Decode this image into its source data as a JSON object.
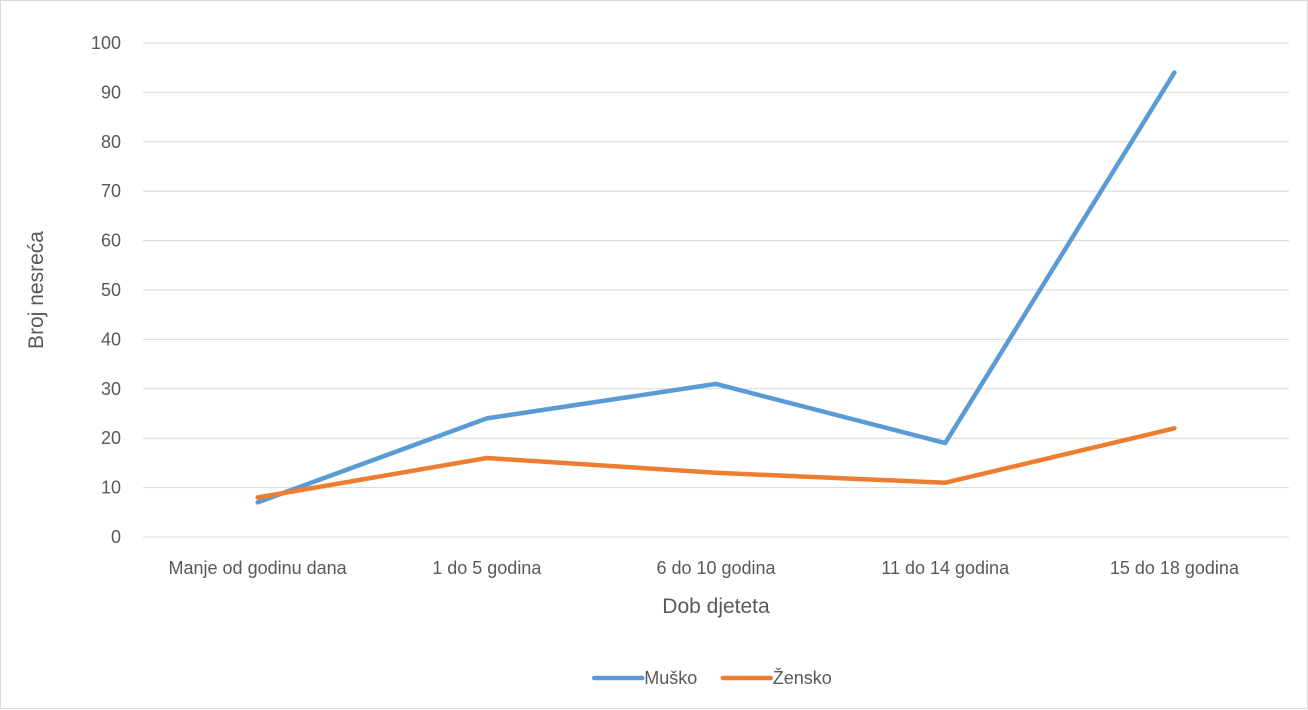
{
  "chart_data": {
    "type": "line",
    "title": "",
    "xlabel": "Dob djeteta",
    "ylabel": "Broj nesreća",
    "categories": [
      "Manje od godinu dana",
      "1 do 5 godina",
      "6 do 10 godina",
      "11 do 14 godina",
      "15 do 18 godina"
    ],
    "series": [
      {
        "name": "Muško",
        "color": "#5b9bd5",
        "values": [
          7,
          24,
          31,
          19,
          94
        ]
      },
      {
        "name": "Žensko",
        "color": "#ed7d31",
        "values": [
          8,
          16,
          13,
          11,
          22
        ]
      }
    ],
    "ylim": [
      0,
      100
    ],
    "yticks": [
      "0",
      "10",
      "20",
      "30",
      "40",
      "50",
      "60",
      "70",
      "80",
      "90",
      "100"
    ],
    "grid": true,
    "legend": "bottom"
  }
}
